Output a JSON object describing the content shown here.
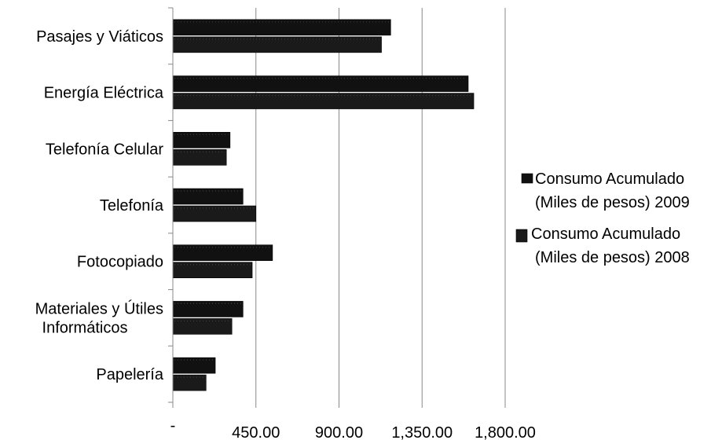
{
  "chart_data": {
    "type": "bar",
    "orientation": "horizontal",
    "title": "",
    "xlabel": "",
    "ylabel": "",
    "xlim": [
      0,
      1800
    ],
    "grid": true,
    "legend_position": "right",
    "categories": [
      [
        "Pasajes y Viáticos"
      ],
      [
        "Energía Eléctrica"
      ],
      [
        "Telefonía Celular"
      ],
      [
        "Telefonía"
      ],
      [
        "Fotocopiado"
      ],
      [
        "Materiales y Útiles",
        "Informáticos"
      ],
      [
        "Papelería"
      ]
    ],
    "ticks": [
      {
        "value": 0,
        "label": "-"
      },
      {
        "value": 450,
        "label": "450.00"
      },
      {
        "value": 900,
        "label": "900.00"
      },
      {
        "value": 1350,
        "label": "1,350.00"
      },
      {
        "value": 1800,
        "label": "1,800.00"
      }
    ],
    "series": [
      {
        "name": [
          "Consumo Acumulado",
          "(Miles de pesos) 2009"
        ],
        "values": [
          1180,
          1600,
          310,
          380,
          540,
          380,
          230
        ],
        "color": "#111111"
      },
      {
        "name": [
          "Consumo Acumulado",
          "(Miles de pesos) 2008"
        ],
        "values": [
          1130,
          1630,
          290,
          450,
          430,
          320,
          180
        ],
        "color": "#1a1a1a"
      }
    ]
  }
}
